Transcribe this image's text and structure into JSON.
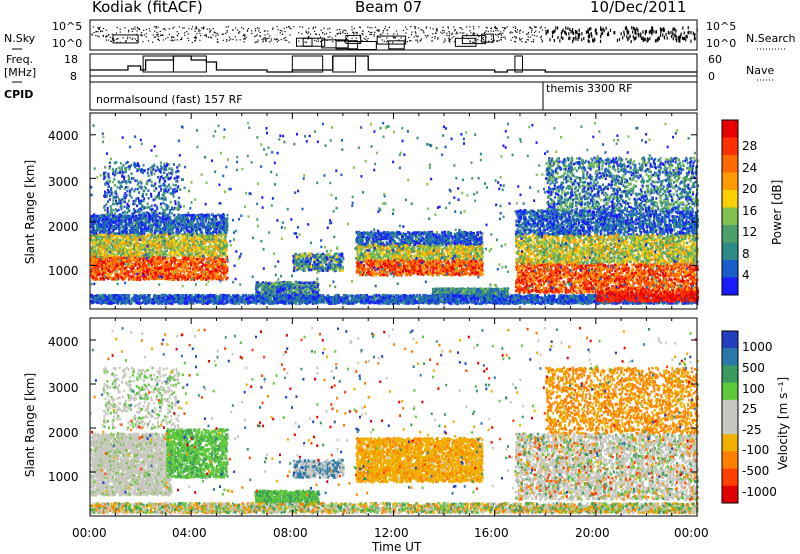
{
  "header": {
    "station": "Kodiak (fitACF)",
    "beam": "Beam 07",
    "date": "10/Dec/2011"
  },
  "panels_top": {
    "nsky_label": "N.Sky",
    "nsearch_label": "N.Search",
    "nsky_ticks": [
      "10^5",
      "10^0"
    ],
    "nsearch_ticks": [
      "10^5",
      "10^0"
    ],
    "freq_label_line1": "Freq.",
    "freq_label_line2": "[MHz]",
    "freq_ticks": [
      "18",
      "8"
    ],
    "nave_label": "Nave",
    "nave_ticks": [
      "60",
      "0"
    ],
    "cpid_label": "CPID",
    "cpid_modes": [
      {
        "text": "normalsound (fast) 157 RF",
        "start_hour": 0
      },
      {
        "text": "themis 3300 RF",
        "start_hour": 18
      }
    ]
  },
  "chart_data": [
    {
      "type": "heatmap",
      "title": "",
      "ylabel": "Slant Range [km]",
      "xlabel": "",
      "y_ticks": [
        "1000",
        "2000",
        "3000",
        "4000"
      ],
      "x_range_hours": [
        0,
        24
      ],
      "colorbar": {
        "label": "Power [dB]",
        "ticks": [
          "4",
          "8",
          "12",
          "16",
          "20",
          "24",
          "28"
        ],
        "colors": [
          "#1a1aff",
          "#1a5cc8",
          "#2e8a86",
          "#4da06a",
          "#7fc050",
          "#ffd000",
          "#ff9a00",
          "#ff6a00",
          "#ff3000",
          "#e80000"
        ]
      }
    },
    {
      "type": "heatmap",
      "title": "",
      "ylabel": "Slant Range [km]",
      "xlabel": "Time UT",
      "y_ticks": [
        "1000",
        "2000",
        "3000",
        "4000"
      ],
      "x_ticks": [
        "00:00",
        "04:00",
        "08:00",
        "12:00",
        "16:00",
        "20:00",
        "00:00"
      ],
      "x_range_hours": [
        0,
        24
      ],
      "colorbar": {
        "label": "Velocity [m s⁻¹]",
        "ticks": [
          "1000",
          "500",
          "100",
          "25",
          "-25",
          "-100",
          "-500",
          "-1000"
        ],
        "colors": [
          "#2040c0",
          "#2a78a8",
          "#3a9a60",
          "#5ec83a",
          "#c8c8c0",
          "#c8c8c0",
          "#f0b000",
          "#ff8000",
          "#ff4000",
          "#e00000"
        ]
      }
    }
  ]
}
